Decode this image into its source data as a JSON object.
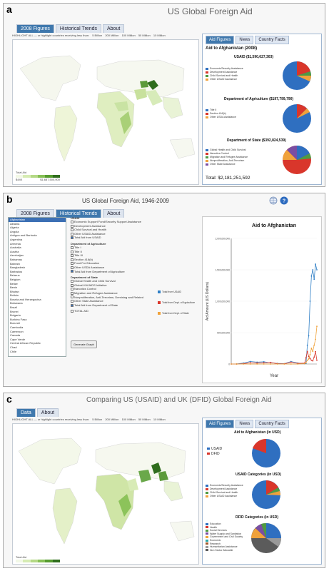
{
  "panel_a": {
    "label": "a",
    "title": "US Global Foreign Aid",
    "tabs": [
      "2008 Figures",
      "Historical Trends",
      "About"
    ],
    "filter_text": "HIGHLIGHT ALL — or highlight countries receiving less than:",
    "filter_options": [
      "5 Billion",
      "200 Million",
      "100 Million",
      "50 Million",
      "10 Million"
    ],
    "legend_title": "Total Aid",
    "legend_min": "$44K",
    "legend_max": "$1,687,500,000",
    "side_tabs": [
      "Aid Figures",
      "News",
      "Country Facts"
    ],
    "side_heading": "Aid to Afghanistan (2008)",
    "sections": [
      {
        "title": "USAID ($1,590,627,303)",
        "legend": [
          "Economic/Security Assistance",
          "Development Assistance",
          "Child Survival and Health",
          "Other USAID Assistance"
        ],
        "colors": [
          "#2f6fc0",
          "#d9362b",
          "#4f9a43",
          "#f0a23b"
        ]
      },
      {
        "title": "Department of Agriculture ($197,799,790)",
        "legend": [
          "Title II",
          "Section 416(b)",
          "Other USDA Assistance"
        ],
        "colors": [
          "#2f6fc0",
          "#d9362b",
          "#f0a23b"
        ]
      },
      {
        "title": "Department of State ($392,824,539)",
        "legend": [
          "Global Health and Child Survival",
          "Narcotics Control",
          "Migration and Refugee Assistance",
          "Nonproliferation, Anti-Terrorism",
          "Other State Assistance"
        ],
        "colors": [
          "#2f6fc0",
          "#d9362b",
          "#4f9a43",
          "#f0a23b",
          "#7a4ea3"
        ]
      }
    ],
    "total": "Total: $2,181,251,592"
  },
  "panel_b": {
    "label": "b",
    "title": "US Global Foreign Aid, 1946-2009",
    "icons": [
      "globe-icon",
      "help-icon"
    ],
    "tabs": [
      "2008 Figures",
      "Historical Trends",
      "About"
    ],
    "countries": [
      "Afghanistan",
      "Albania",
      "Algeria",
      "Angola",
      "Antigua and Barbuda",
      "Argentina",
      "Armenia",
      "Australia",
      "Austria",
      "Azerbaijan",
      "Bahamas",
      "Bahrain",
      "Bangladesh",
      "Barbados",
      "Belarus",
      "Belgium",
      "Belize",
      "Benin",
      "Bhutan",
      "Bolivia",
      "Bosnia and Herzegovina",
      "Botswana",
      "Brazil",
      "Brunei",
      "Bulgaria",
      "Burkina Faso",
      "Burundi",
      "Cambodia",
      "Cameroon",
      "Canada",
      "Cape Verde",
      "Central African Republic",
      "Chad",
      "Chile"
    ],
    "usaid_header": "USAID",
    "usaid_options": [
      {
        "label": "Economic Support Fund/Security Support Assistance",
        "checked": false
      },
      {
        "label": "Development Assistance",
        "checked": false
      },
      {
        "label": "Child Survival and Health",
        "checked": false
      },
      {
        "label": "Other USAID Assistance",
        "checked": false
      },
      {
        "label": "Total Aid from USAID",
        "checked": true
      }
    ],
    "agri_header": "Department of Agriculture",
    "agri_options": [
      {
        "label": "Title I",
        "checked": false
      },
      {
        "label": "Title II",
        "checked": false
      },
      {
        "label": "Title III",
        "checked": false
      },
      {
        "label": "Section 416(b)",
        "checked": false
      },
      {
        "label": "Food For Education",
        "checked": false
      },
      {
        "label": "Other USDA Assistance",
        "checked": false
      },
      {
        "label": "Total Aid from Department of Agriculture",
        "checked": true
      }
    ],
    "state_header": "Department of State",
    "state_options": [
      {
        "label": "Global Health and Child Survival",
        "checked": false
      },
      {
        "label": "Global HIV/AIDS Initiative",
        "checked": false
      },
      {
        "label": "Narcotics Control",
        "checked": false
      },
      {
        "label": "Migration and Refugee Assistance",
        "checked": false
      },
      {
        "label": "Nonproliferation, Anti-Terrorism, Demining and Related",
        "checked": false
      },
      {
        "label": "Other State Assistance",
        "checked": false
      },
      {
        "label": "Total Aid from Department of State",
        "checked": true
      }
    ],
    "total_aid": "TOTAL AID",
    "generate_button": "Generate Graph",
    "series_legend": [
      "Total from USAID",
      "Total from Dept. of Agriculture",
      "Total from Dept. of State"
    ],
    "series_colors": [
      "#2f7fc6",
      "#d9362b",
      "#f0a23b"
    ]
  },
  "chart_data": {
    "type": "line",
    "title": "Aid to Afghanistan",
    "xlabel": "Year",
    "ylabel": "Aid Amount (US Dollars)",
    "ylim": [
      0,
      2000000000
    ],
    "yticks": [
      "2,000,000,000",
      "1,500,000,000",
      "1,000,000,000",
      "500,000,000",
      "0"
    ],
    "x": [
      1946,
      1950,
      1955,
      1960,
      1965,
      1970,
      1975,
      1980,
      1985,
      1990,
      1995,
      2000,
      2001,
      2002,
      2003,
      2004,
      2005,
      2006,
      2007,
      2008,
      2009
    ],
    "series": [
      {
        "name": "Total from USAID",
        "values": [
          0,
          1000000,
          15000000,
          40000000,
          30000000,
          35000000,
          20000000,
          10000000,
          5000000,
          40000000,
          15000000,
          5000000,
          10000000,
          300000000,
          450000000,
          1000000000,
          1400000000,
          1500000000,
          1350000000,
          1590000000,
          1500000000
        ]
      },
      {
        "name": "Total from Dept. of Agriculture",
        "values": [
          0,
          0,
          5000000,
          20000000,
          15000000,
          20000000,
          25000000,
          5000000,
          2000000,
          30000000,
          10000000,
          15000000,
          100000000,
          200000000,
          120000000,
          90000000,
          60000000,
          50000000,
          110000000,
          197000000,
          60000000
        ]
      },
      {
        "name": "Total from Dept. of State",
        "values": [
          0,
          0,
          0,
          0,
          0,
          0,
          0,
          0,
          0,
          0,
          0,
          5000000,
          20000000,
          60000000,
          80000000,
          150000000,
          250000000,
          200000000,
          300000000,
          392000000,
          600000000
        ]
      }
    ]
  },
  "panel_c": {
    "label": "c",
    "title": "Comparing US (USAID) and UK (DFID) Global Foreign Aid",
    "tabs": [
      "Data",
      "About"
    ],
    "filter_text": "HIGHLIGHT ALL — or highlight countries receiving less than:",
    "filter_options": [
      "5 Billion",
      "200 Million",
      "100 Million",
      "50 Million",
      "10 Million"
    ],
    "legend_title": "Total Aid",
    "side_tabs": [
      "Aid Figures",
      "News",
      "Country Facts"
    ],
    "sections": [
      {
        "title": "Aid to Afghanistan (in USD)",
        "legend": [
          "USAID",
          "DFID"
        ],
        "colors": [
          "#2f6fc0",
          "#d9362b"
        ]
      },
      {
        "title": "USAID Categories (in USD)",
        "legend": [
          "Economic/Security Assistance",
          "Development Assistance",
          "Child Survival and Health",
          "Other USAID Assistance"
        ],
        "colors": [
          "#2f6fc0",
          "#d9362b",
          "#4f9a43",
          "#f0a23b"
        ]
      },
      {
        "title": "DFID Categories (in USD)",
        "legend": [
          "Education",
          "Health",
          "Social Services",
          "Water Supply and Sanitation",
          "Government and Civil Society",
          "Economic",
          "Research",
          "Humanitarian Assistance",
          "Non Sector Allocable"
        ],
        "colors": [
          "#2f6fc0",
          "#d9362b",
          "#4f9a43",
          "#7a4ea3",
          "#f0a23b",
          "#2ba6a8",
          "#a05a2c",
          "#999999",
          "#5b5b5b"
        ]
      }
    ]
  }
}
